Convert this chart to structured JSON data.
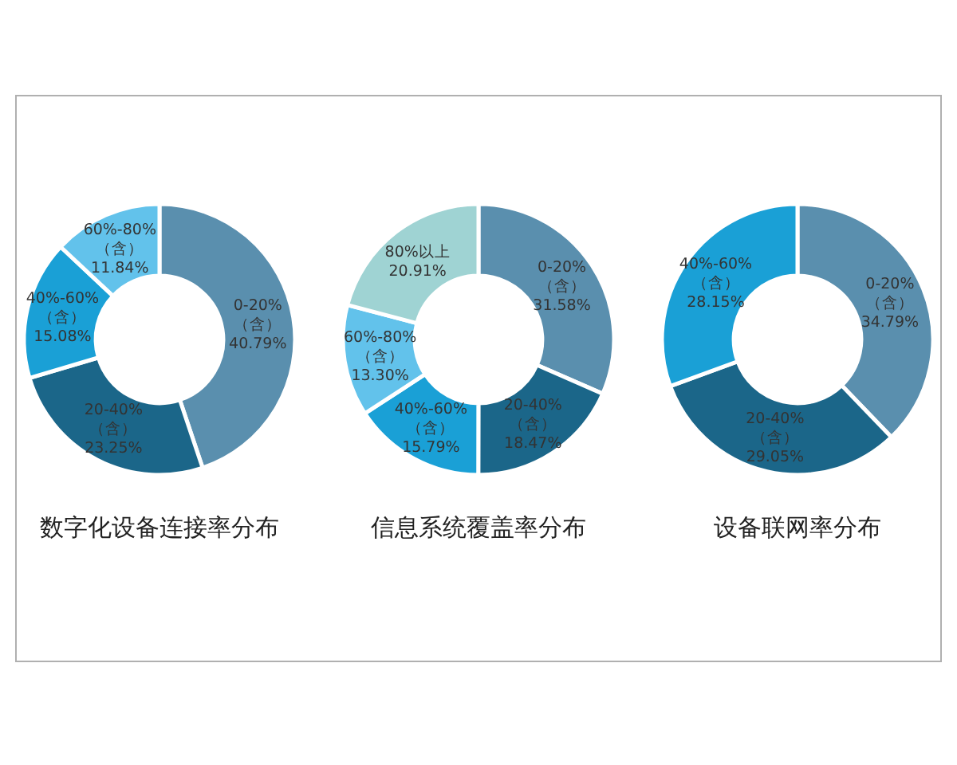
{
  "chart_data": [
    {
      "type": "donut",
      "title": "数字化设备连接率分布",
      "categories": [
        "0-20%（含）",
        "20-40%（含）",
        "40%-60%（含）",
        "60%-80%（含）"
      ],
      "values": [
        40.79,
        23.25,
        15.08,
        11.84
      ],
      "value_labels": [
        "40.79%",
        "23.25%",
        "15.08%",
        "11.84%"
      ],
      "colors": [
        "#5a8fae",
        "#1b6689",
        "#1aa0d6",
        "#62c2eb"
      ]
    },
    {
      "type": "donut",
      "title": "信息系统覆盖率分布",
      "categories": [
        "0-20%（含）",
        "20-40%（含）",
        "40%-60%（含）",
        "60%-80%（含）",
        "80%以上"
      ],
      "values": [
        31.58,
        18.47,
        15.79,
        13.3,
        20.91
      ],
      "value_labels": [
        "31.58%",
        "18.47%",
        "15.79%",
        "13.30%",
        "20.91%"
      ],
      "colors": [
        "#5a8fae",
        "#1b6689",
        "#1aa0d6",
        "#62c2eb",
        "#9fd3d3"
      ]
    },
    {
      "type": "donut",
      "title": "设备联网率分布",
      "categories": [
        "0-20%（含）",
        "20-40%（含）",
        "40%-60%（含）"
      ],
      "values": [
        34.79,
        29.05,
        28.15
      ],
      "value_labels": [
        "34.79%",
        "29.05%",
        "28.15%"
      ],
      "colors": [
        "#5a8fae",
        "#1b6689",
        "#1aa0d6"
      ]
    }
  ]
}
